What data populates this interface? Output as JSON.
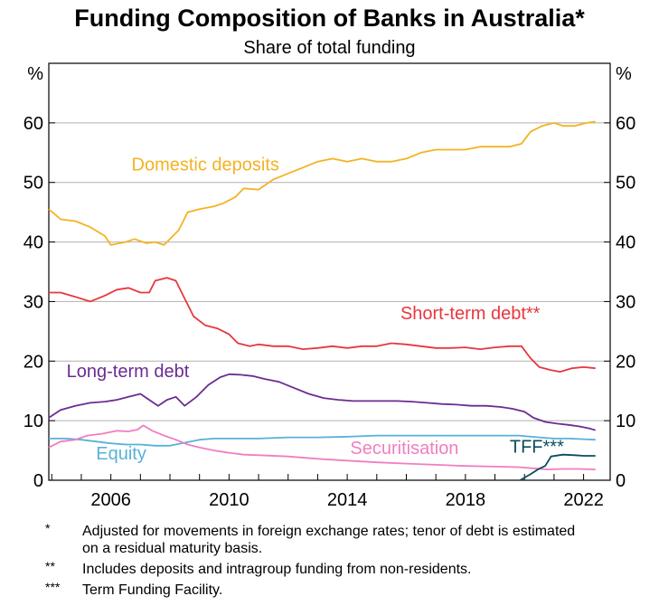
{
  "chart_data": {
    "type": "line",
    "title": "Funding Composition of Banks in Australia*",
    "subtitle": "Share of total funding",
    "ylabel_left": "%",
    "ylabel_right": "%",
    "xlim": [
      2003.9,
      2022.9
    ],
    "ylim": [
      0,
      70
    ],
    "yticks": [
      0,
      10,
      20,
      30,
      40,
      50,
      60
    ],
    "xticks": [
      2006,
      2010,
      2014,
      2018,
      2022
    ],
    "grid": true,
    "series": [
      {
        "name": "Domestic deposits",
        "color": "#f4b223",
        "label_pos": [
          2006.7,
          52
        ],
        "points": [
          [
            2003.9,
            45.5
          ],
          [
            2004.3,
            43.8
          ],
          [
            2004.8,
            43.5
          ],
          [
            2005.3,
            42.5
          ],
          [
            2005.8,
            41
          ],
          [
            2006.0,
            39.5
          ],
          [
            2006.5,
            40
          ],
          [
            2006.8,
            40.5
          ],
          [
            2007.2,
            39.8
          ],
          [
            2007.5,
            40
          ],
          [
            2007.8,
            39.5
          ],
          [
            2008.0,
            40.5
          ],
          [
            2008.3,
            42
          ],
          [
            2008.6,
            45
          ],
          [
            2009.0,
            45.5
          ],
          [
            2009.5,
            46
          ],
          [
            2009.8,
            46.5
          ],
          [
            2010.2,
            47.5
          ],
          [
            2010.5,
            49
          ],
          [
            2011.0,
            48.8
          ],
          [
            2011.5,
            50.5
          ],
          [
            2012.0,
            51.5
          ],
          [
            2012.5,
            52.5
          ],
          [
            2013.0,
            53.5
          ],
          [
            2013.5,
            54
          ],
          [
            2014.0,
            53.5
          ],
          [
            2014.5,
            54
          ],
          [
            2015.0,
            53.5
          ],
          [
            2015.5,
            53.5
          ],
          [
            2016.0,
            54
          ],
          [
            2016.5,
            55
          ],
          [
            2017.0,
            55.5
          ],
          [
            2017.5,
            55.5
          ],
          [
            2018.0,
            55.5
          ],
          [
            2018.5,
            56
          ],
          [
            2019.0,
            56
          ],
          [
            2019.5,
            56
          ],
          [
            2019.9,
            56.5
          ],
          [
            2020.2,
            58.5
          ],
          [
            2020.6,
            59.5
          ],
          [
            2021.0,
            60
          ],
          [
            2021.3,
            59.5
          ],
          [
            2021.7,
            59.5
          ],
          [
            2022.1,
            60
          ],
          [
            2022.4,
            60.2
          ]
        ]
      },
      {
        "name": "Short-term debt**",
        "color": "#e8363e",
        "label_pos": [
          2015.8,
          27
        ],
        "points": [
          [
            2003.9,
            31.5
          ],
          [
            2004.3,
            31.5
          ],
          [
            2004.8,
            30.8
          ],
          [
            2005.3,
            30
          ],
          [
            2005.8,
            31
          ],
          [
            2006.2,
            32
          ],
          [
            2006.6,
            32.3
          ],
          [
            2007.0,
            31.5
          ],
          [
            2007.3,
            31.5
          ],
          [
            2007.5,
            33.5
          ],
          [
            2007.9,
            34
          ],
          [
            2008.2,
            33.5
          ],
          [
            2008.5,
            30.5
          ],
          [
            2008.8,
            27.5
          ],
          [
            2009.2,
            26
          ],
          [
            2009.6,
            25.5
          ],
          [
            2010.0,
            24.5
          ],
          [
            2010.3,
            23
          ],
          [
            2010.7,
            22.5
          ],
          [
            2011.0,
            22.8
          ],
          [
            2011.5,
            22.5
          ],
          [
            2012.0,
            22.5
          ],
          [
            2012.5,
            22
          ],
          [
            2013.0,
            22.2
          ],
          [
            2013.5,
            22.5
          ],
          [
            2014.0,
            22.2
          ],
          [
            2014.5,
            22.5
          ],
          [
            2015.0,
            22.5
          ],
          [
            2015.5,
            23
          ],
          [
            2016.0,
            22.8
          ],
          [
            2016.5,
            22.5
          ],
          [
            2017.0,
            22.2
          ],
          [
            2017.5,
            22.2
          ],
          [
            2018.0,
            22.3
          ],
          [
            2018.5,
            22
          ],
          [
            2019.0,
            22.3
          ],
          [
            2019.5,
            22.5
          ],
          [
            2019.9,
            22.5
          ],
          [
            2020.2,
            20.5
          ],
          [
            2020.5,
            19
          ],
          [
            2020.9,
            18.5
          ],
          [
            2021.2,
            18.2
          ],
          [
            2021.6,
            18.8
          ],
          [
            2022.0,
            19
          ],
          [
            2022.4,
            18.8
          ]
        ]
      },
      {
        "name": "Long-term debt",
        "color": "#6b2c91",
        "label_pos": [
          2004.5,
          17.3
        ],
        "points": [
          [
            2003.9,
            10.5
          ],
          [
            2004.3,
            11.8
          ],
          [
            2004.8,
            12.5
          ],
          [
            2005.3,
            13
          ],
          [
            2005.8,
            13.2
          ],
          [
            2006.2,
            13.5
          ],
          [
            2006.6,
            14
          ],
          [
            2007.0,
            14.5
          ],
          [
            2007.3,
            13.5
          ],
          [
            2007.6,
            12.5
          ],
          [
            2007.9,
            13.5
          ],
          [
            2008.2,
            14
          ],
          [
            2008.5,
            12.5
          ],
          [
            2008.9,
            14
          ],
          [
            2009.3,
            16
          ],
          [
            2009.7,
            17.3
          ],
          [
            2010.0,
            17.8
          ],
          [
            2010.4,
            17.7
          ],
          [
            2010.8,
            17.5
          ],
          [
            2011.2,
            17
          ],
          [
            2011.7,
            16.5
          ],
          [
            2012.2,
            15.5
          ],
          [
            2012.7,
            14.5
          ],
          [
            2013.2,
            13.8
          ],
          [
            2013.7,
            13.5
          ],
          [
            2014.2,
            13.3
          ],
          [
            2014.7,
            13.3
          ],
          [
            2015.2,
            13.3
          ],
          [
            2015.7,
            13.3
          ],
          [
            2016.2,
            13.2
          ],
          [
            2016.7,
            13
          ],
          [
            2017.2,
            12.8
          ],
          [
            2017.7,
            12.7
          ],
          [
            2018.2,
            12.5
          ],
          [
            2018.7,
            12.5
          ],
          [
            2019.2,
            12.3
          ],
          [
            2019.6,
            12
          ],
          [
            2020.0,
            11.5
          ],
          [
            2020.3,
            10.5
          ],
          [
            2020.7,
            9.8
          ],
          [
            2021.1,
            9.5
          ],
          [
            2021.5,
            9.3
          ],
          [
            2021.9,
            9
          ],
          [
            2022.2,
            8.7
          ],
          [
            2022.4,
            8.4
          ]
        ]
      },
      {
        "name": "Equity",
        "color": "#58b1d8",
        "label_pos": [
          2005.5,
          3.5
        ],
        "points": [
          [
            2003.9,
            7
          ],
          [
            2004.5,
            7
          ],
          [
            2005.0,
            6.8
          ],
          [
            2005.5,
            6.5
          ],
          [
            2006.0,
            6.2
          ],
          [
            2006.5,
            6
          ],
          [
            2007.0,
            6
          ],
          [
            2007.5,
            5.8
          ],
          [
            2008.0,
            5.8
          ],
          [
            2008.5,
            6.3
          ],
          [
            2009.0,
            6.8
          ],
          [
            2009.5,
            7
          ],
          [
            2010.0,
            7
          ],
          [
            2011.0,
            7
          ],
          [
            2012.0,
            7.2
          ],
          [
            2013.0,
            7.2
          ],
          [
            2014.0,
            7.3
          ],
          [
            2015.0,
            7.5
          ],
          [
            2016.0,
            7.5
          ],
          [
            2017.0,
            7.5
          ],
          [
            2018.0,
            7.5
          ],
          [
            2019.0,
            7.5
          ],
          [
            2019.8,
            7.5
          ],
          [
            2020.5,
            7.2
          ],
          [
            2021.0,
            7
          ],
          [
            2021.5,
            7
          ],
          [
            2022.0,
            6.9
          ],
          [
            2022.4,
            6.8
          ]
        ]
      },
      {
        "name": "Securitisation",
        "color": "#f07ec1",
        "label_pos": [
          2014.1,
          4.4
        ],
        "points": [
          [
            2003.9,
            5.5
          ],
          [
            2004.3,
            6.5
          ],
          [
            2004.8,
            6.8
          ],
          [
            2005.2,
            7.5
          ],
          [
            2005.7,
            7.8
          ],
          [
            2006.2,
            8.3
          ],
          [
            2006.6,
            8.2
          ],
          [
            2006.9,
            8.5
          ],
          [
            2007.1,
            9.2
          ],
          [
            2007.4,
            8.3
          ],
          [
            2007.8,
            7.5
          ],
          [
            2008.2,
            6.8
          ],
          [
            2008.6,
            6
          ],
          [
            2009.0,
            5.5
          ],
          [
            2009.5,
            5
          ],
          [
            2010.0,
            4.6
          ],
          [
            2010.5,
            4.3
          ],
          [
            2011.0,
            4.2
          ],
          [
            2012.0,
            4
          ],
          [
            2013.0,
            3.6
          ],
          [
            2014.0,
            3.3
          ],
          [
            2015.0,
            3
          ],
          [
            2016.0,
            2.8
          ],
          [
            2017.0,
            2.6
          ],
          [
            2018.0,
            2.4
          ],
          [
            2019.0,
            2.3
          ],
          [
            2019.8,
            2.2
          ],
          [
            2020.3,
            2
          ],
          [
            2020.8,
            1.8
          ],
          [
            2021.3,
            1.9
          ],
          [
            2021.8,
            1.9
          ],
          [
            2022.4,
            1.8
          ]
        ]
      },
      {
        "name": "TFF***",
        "color": "#0a4d5c",
        "label_pos": [
          2019.5,
          4.6
        ],
        "points": [
          [
            2019.85,
            0
          ],
          [
            2020.2,
            1
          ],
          [
            2020.45,
            1.8
          ],
          [
            2020.7,
            2.4
          ],
          [
            2020.9,
            4
          ],
          [
            2021.3,
            4.3
          ],
          [
            2021.7,
            4.2
          ],
          [
            2022.0,
            4.1
          ],
          [
            2022.4,
            4.1
          ]
        ]
      }
    ]
  },
  "notes": [
    {
      "mark": "*",
      "text": "Adjusted for movements in foreign exchange rates; tenor of debt is estimated on a residual maturity basis."
    },
    {
      "mark": "**",
      "text": "Includes deposits and intragroup funding from non-residents."
    },
    {
      "mark": "***",
      "text": "Term Funding Facility."
    }
  ]
}
